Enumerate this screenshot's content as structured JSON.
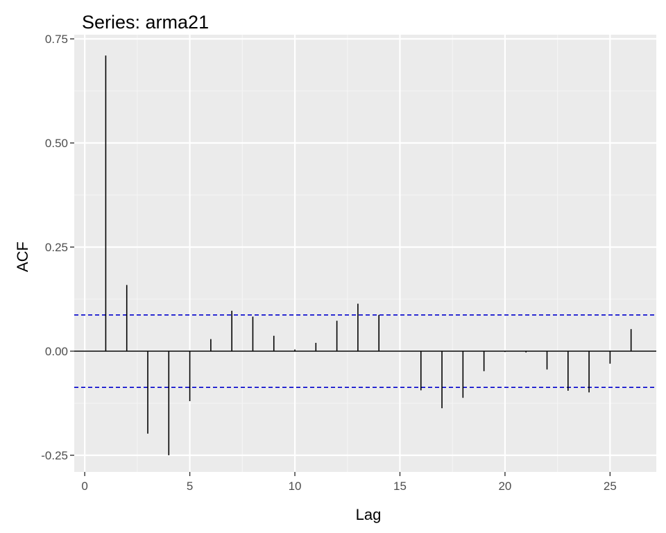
{
  "chart_data": {
    "type": "bar",
    "title": "Series: arma21",
    "xlabel": "Lag",
    "ylabel": "ACF",
    "xlim": [
      -0.5,
      27.2
    ],
    "ylim": [
      -0.29,
      0.76
    ],
    "x_ticks": [
      0,
      5,
      10,
      15,
      20,
      25
    ],
    "x_tick_labels": [
      "0",
      "5",
      "10",
      "15",
      "20",
      "25"
    ],
    "y_ticks": [
      -0.25,
      0,
      0.25,
      0.5,
      0.75
    ],
    "y_tick_labels": [
      "-0.25",
      "0.00",
      "0.25",
      "0.50",
      "0.75"
    ],
    "lags": [
      1,
      2,
      3,
      4,
      5,
      6,
      7,
      8,
      9,
      10,
      11,
      12,
      13,
      14,
      15,
      16,
      17,
      18,
      19,
      20,
      21,
      22,
      23,
      24,
      25,
      26
    ],
    "acf": [
      0.71,
      0.159,
      -0.198,
      -0.25,
      -0.12,
      0.029,
      0.097,
      0.083,
      0.037,
      0.004,
      0.02,
      0.073,
      0.114,
      0.087,
      0.0,
      -0.094,
      -0.137,
      -0.112,
      -0.048,
      -0.002,
      -0.003,
      -0.044,
      -0.095,
      -0.099,
      -0.03,
      0.053
    ],
    "confidence_bounds": [
      0.087,
      -0.087
    ],
    "grid": true,
    "colors": {
      "panel_background": "#ebebeb",
      "grid_major": "#ffffff",
      "grid_minor": "#f5f5f5",
      "bar": "#000000",
      "confidence_line": "#0000cc",
      "zero_line": "#000000",
      "tick_mark": "#333333"
    }
  }
}
